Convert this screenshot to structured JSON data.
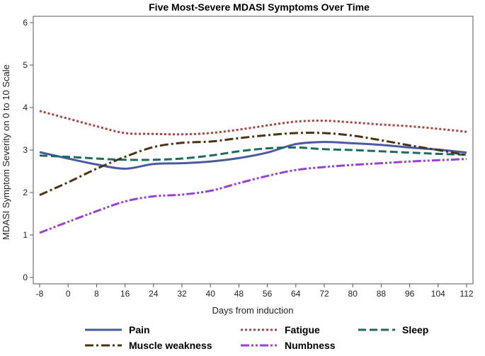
{
  "chart_data": {
    "type": "line",
    "title": "Five Most-Severe MDASI Symptoms Over Time",
    "xlabel": "Days from induction",
    "ylabel": "MDASI Symptom Severity on 0 to 10 Scale",
    "x": [
      -8,
      0,
      8,
      16,
      24,
      32,
      40,
      48,
      56,
      64,
      72,
      80,
      88,
      96,
      104,
      112
    ],
    "xticks": [
      -8,
      0,
      8,
      16,
      24,
      32,
      40,
      48,
      56,
      64,
      72,
      80,
      88,
      96,
      104,
      112
    ],
    "xtick_labels": [
      "-8",
      "0",
      "8",
      "16",
      "24",
      "32",
      "40",
      "48",
      "56",
      "64",
      "72",
      "80",
      "88",
      "96",
      "104",
      "112"
    ],
    "xlim": [
      -8,
      112
    ],
    "yticks": [
      0,
      1,
      2,
      3,
      4,
      5,
      6
    ],
    "ytick_labels": [
      "0",
      "1",
      "2",
      "3",
      "4",
      "5",
      "6"
    ],
    "ylim": [
      0,
      6
    ],
    "grid": false,
    "legend_position": "bottom",
    "series": [
      {
        "name": "Pain",
        "color": "#4a5a9e",
        "dash": "solid",
        "values": [
          2.95,
          2.8,
          2.66,
          2.56,
          2.67,
          2.69,
          2.73,
          2.81,
          2.94,
          3.14,
          3.19,
          3.16,
          3.12,
          3.06,
          3.01,
          2.94
        ]
      },
      {
        "name": "Fatigue",
        "color": "#b0413e",
        "dash": "dot",
        "values": [
          3.92,
          3.74,
          3.56,
          3.4,
          3.38,
          3.37,
          3.4,
          3.48,
          3.58,
          3.67,
          3.69,
          3.65,
          3.6,
          3.56,
          3.5,
          3.43
        ]
      },
      {
        "name": "Sleep",
        "color": "#1b6b60",
        "dash": "dash",
        "values": [
          2.87,
          2.84,
          2.8,
          2.77,
          2.77,
          2.8,
          2.87,
          2.97,
          3.04,
          3.06,
          3.02,
          3.0,
          2.97,
          2.94,
          2.91,
          2.89
        ]
      },
      {
        "name": "Muscle weakness",
        "color": "#4a3512",
        "dash": "dashdot",
        "values": [
          1.94,
          2.24,
          2.56,
          2.84,
          3.07,
          3.17,
          3.2,
          3.28,
          3.35,
          3.4,
          3.4,
          3.34,
          3.23,
          3.11,
          3.0,
          2.88
        ]
      },
      {
        "name": "Numbness",
        "color": "#9a40d8",
        "dash": "dashdotdot",
        "values": [
          1.05,
          1.31,
          1.56,
          1.79,
          1.91,
          1.95,
          2.04,
          2.22,
          2.39,
          2.53,
          2.6,
          2.65,
          2.69,
          2.73,
          2.76,
          2.79
        ]
      }
    ]
  }
}
